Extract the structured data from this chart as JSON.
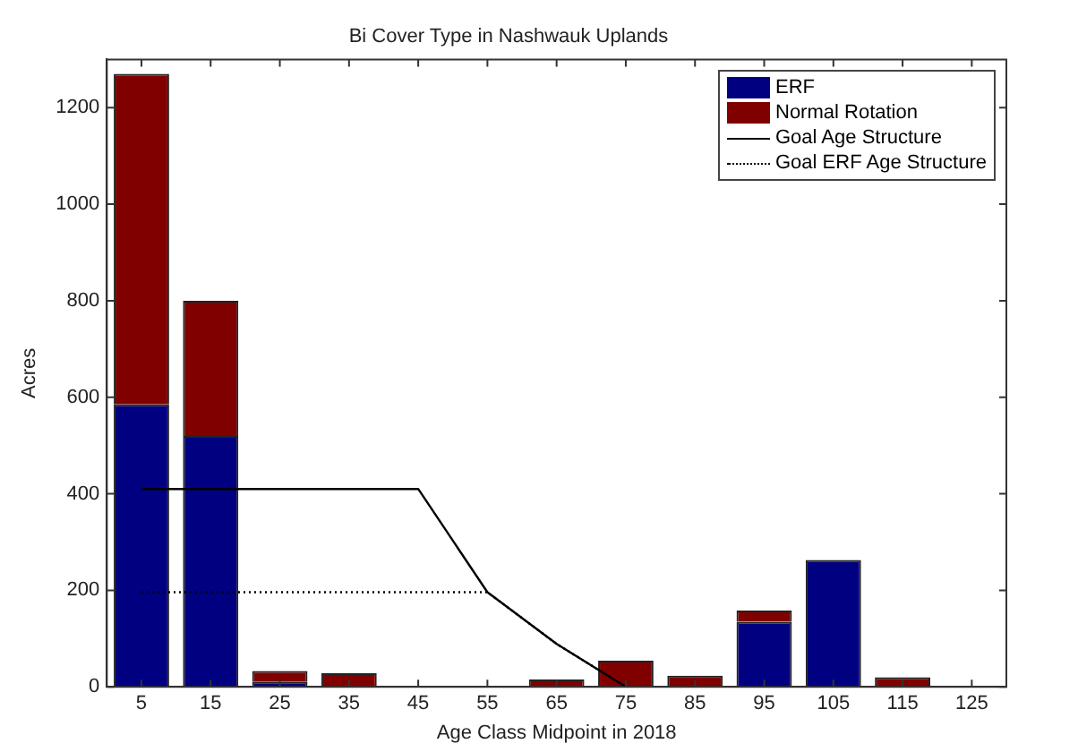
{
  "chart_data": {
    "type": "bar",
    "title": "Bi Cover Type in Nashwauk Uplands",
    "xlabel": "Age Class Midpoint in 2018",
    "ylabel": "Acres",
    "categories": [
      "5",
      "15",
      "25",
      "35",
      "45",
      "55",
      "65",
      "75",
      "85",
      "95",
      "105",
      "115",
      "125"
    ],
    "stacked": true,
    "series": [
      {
        "name": "ERF",
        "color": "#000080",
        "values": [
          585,
          520,
          10,
          0,
          0,
          0,
          0,
          0,
          0,
          135,
          263,
          0,
          0
        ]
      },
      {
        "name": "Normal Rotation",
        "color": "#800000",
        "values": [
          685,
          280,
          23,
          28,
          0,
          0,
          15,
          54,
          23,
          23,
          0,
          20,
          0
        ]
      },
      {
        "name": "Goal Age Structure",
        "type": "line",
        "color": "#000000",
        "line_style": "solid",
        "values": [
          410,
          410,
          410,
          410,
          410,
          196,
          89,
          0,
          null,
          null,
          null,
          null,
          null
        ]
      },
      {
        "name": "Goal ERF Age Structure",
        "type": "line",
        "color": "#000000",
        "line_style": "dotted",
        "values": [
          196,
          196,
          196,
          196,
          196,
          196,
          89,
          0,
          null,
          null,
          null,
          null,
          null
        ]
      }
    ],
    "ylim": [
      0,
      1300
    ],
    "yticks": [
      0,
      200,
      400,
      600,
      800,
      1000,
      1200
    ],
    "grid": false,
    "legend": "top right",
    "marker": "none"
  }
}
